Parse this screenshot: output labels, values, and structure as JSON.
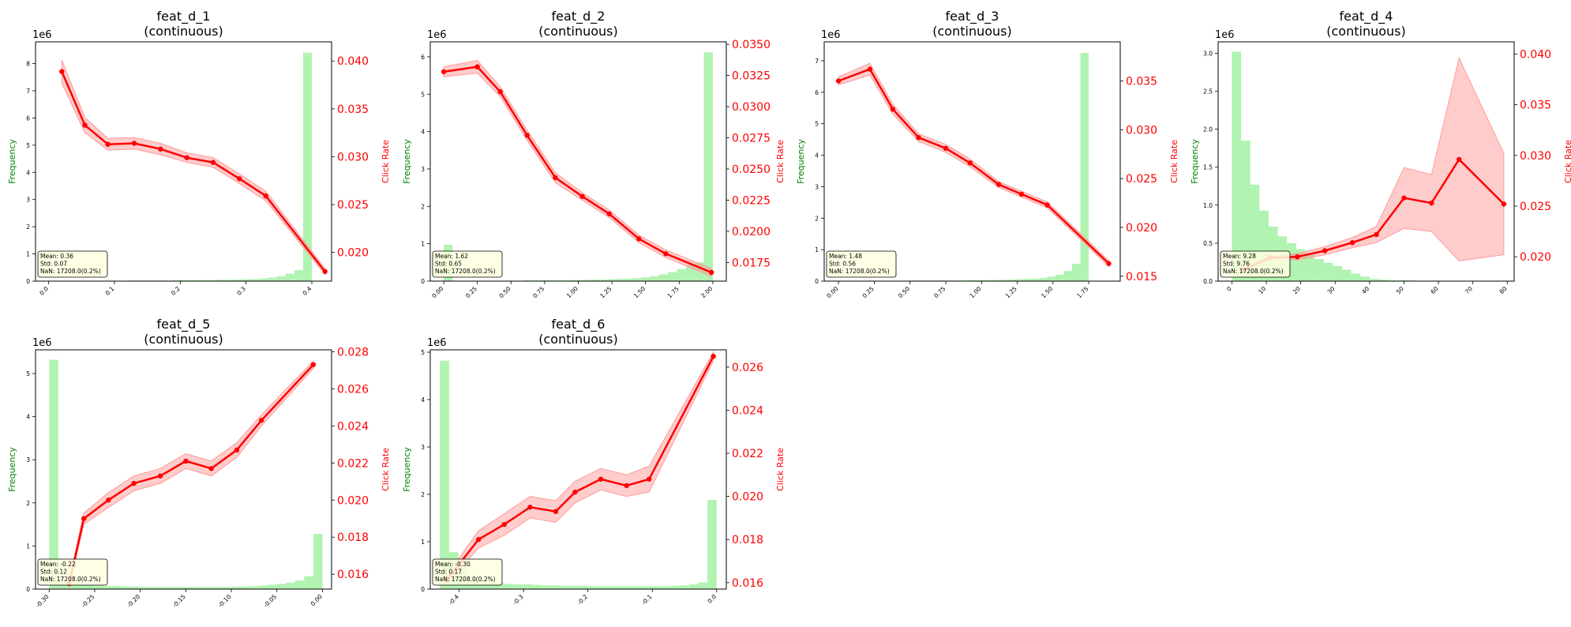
{
  "chart_data": [
    {
      "type": "bar+line",
      "title": "feat_d_1",
      "subtitle": "(continuous)",
      "ylabel_left": "Frequency",
      "ylabel_right": "Click Rate",
      "exponent_label": "1e6",
      "xlim": [
        -0.02,
        0.43
      ],
      "x_ticks": [
        "0.0",
        "0.1",
        "0.2",
        "0.3",
        "0.4"
      ],
      "x_tick_values": [
        0.0,
        0.1,
        0.2,
        0.3,
        0.4
      ],
      "ylim_left": [
        0,
        8.8
      ],
      "y_left_ticks": [
        "0",
        "1",
        "2",
        "3",
        "4",
        "5",
        "6",
        "7",
        "8"
      ],
      "y_left_tick_values": [
        0,
        1,
        2,
        3,
        4,
        5,
        6,
        7,
        8
      ],
      "ylim_right": [
        0.017,
        0.042
      ],
      "y_right_ticks": [
        "0.020",
        "0.025",
        "0.030",
        "0.035",
        "0.040"
      ],
      "y_right_tick_values": [
        0.02,
        0.025,
        0.03,
        0.035,
        0.04
      ],
      "hist": {
        "bin_edges": [
          0.0,
          0.0133,
          0.0267,
          0.04,
          0.0533,
          0.0667,
          0.08,
          0.0933,
          0.1067,
          0.12,
          0.1333,
          0.1467,
          0.16,
          0.1733,
          0.1867,
          0.2,
          0.2133,
          0.2267,
          0.24,
          0.2533,
          0.2667,
          0.28,
          0.2933,
          0.3067,
          0.32,
          0.3333,
          0.3467,
          0.36,
          0.3733,
          0.3867,
          0.4
        ],
        "counts": [
          0.01,
          0.01,
          0.01,
          0.01,
          0.01,
          0.01,
          0.01,
          0.01,
          0.01,
          0.02,
          0.02,
          0.02,
          0.02,
          0.02,
          0.03,
          0.03,
          0.03,
          0.04,
          0.04,
          0.05,
          0.05,
          0.06,
          0.07,
          0.08,
          0.1,
          0.13,
          0.18,
          0.27,
          0.4,
          8.4
        ]
      },
      "line": {
        "x": [
          0.02,
          0.055,
          0.09,
          0.13,
          0.17,
          0.21,
          0.25,
          0.29,
          0.33,
          0.42
        ],
        "y": [
          0.0389,
          0.0333,
          0.0313,
          0.0314,
          0.0308,
          0.0299,
          0.0294,
          0.0277,
          0.0259,
          0.018
        ],
        "err": [
          0.0012,
          0.0008,
          0.0006,
          0.0006,
          0.0006,
          0.0005,
          0.0005,
          0.0005,
          0.0005,
          0.0003
        ]
      },
      "stats": [
        "Mean: 0.36",
        "Std: 0.07",
        "NaN: 17208.0(0.2%)"
      ]
    },
    {
      "type": "bar+line",
      "title": "feat_d_2",
      "subtitle": "(continuous)",
      "ylabel_left": "Frequency",
      "ylabel_right": "Click Rate",
      "exponent_label": "1e6",
      "xlim": [
        -0.1,
        2.1
      ],
      "x_ticks": [
        "0.00",
        "0.25",
        "0.50",
        "0.75",
        "1.00",
        "1.25",
        "1.50",
        "1.75",
        "2.00"
      ],
      "x_tick_values": [
        0.0,
        0.25,
        0.5,
        0.75,
        1.0,
        1.25,
        1.5,
        1.75,
        2.0
      ],
      "ylim_left": [
        0,
        6.4
      ],
      "y_left_ticks": [
        "0",
        "1",
        "2",
        "3",
        "4",
        "5",
        "6"
      ],
      "y_left_tick_values": [
        0,
        1,
        2,
        3,
        4,
        5,
        6
      ],
      "ylim_right": [
        0.016,
        0.0352
      ],
      "y_right_ticks": [
        "0.0175",
        "0.0200",
        "0.0225",
        "0.0250",
        "0.0275",
        "0.0300",
        "0.0325",
        "0.0350"
      ],
      "y_right_tick_values": [
        0.0175,
        0.02,
        0.0225,
        0.025,
        0.0275,
        0.03,
        0.0325,
        0.035
      ],
      "hist": {
        "bin_edges": [
          0.0,
          0.0667,
          0.1333,
          0.2,
          0.2667,
          0.3333,
          0.4,
          0.4667,
          0.5333,
          0.6,
          0.6667,
          0.7333,
          0.8,
          0.8667,
          0.9333,
          1.0,
          1.0667,
          1.1333,
          1.2,
          1.2667,
          1.3333,
          1.4,
          1.4667,
          1.5333,
          1.6,
          1.6667,
          1.7333,
          1.8,
          1.8667,
          1.9333,
          2.0
        ],
        "counts": [
          0.97,
          0.01,
          0.01,
          0.01,
          0.01,
          0.01,
          0.01,
          0.01,
          0.01,
          0.02,
          0.02,
          0.02,
          0.02,
          0.02,
          0.03,
          0.03,
          0.04,
          0.04,
          0.05,
          0.06,
          0.07,
          0.08,
          0.1,
          0.13,
          0.18,
          0.24,
          0.32,
          0.42,
          0.5,
          6.12
        ]
      },
      "line": {
        "x": [
          0.0,
          0.25,
          0.42,
          0.62,
          0.83,
          1.03,
          1.23,
          1.45,
          1.65,
          1.99
        ],
        "y": [
          0.0328,
          0.0332,
          0.0312,
          0.0277,
          0.0243,
          0.0228,
          0.0214,
          0.0194,
          0.0182,
          0.0167
        ],
        "err": [
          0.0004,
          0.0005,
          0.0004,
          0.0004,
          0.0004,
          0.0003,
          0.0003,
          0.0003,
          0.0003,
          0.0003
        ]
      },
      "stats": [
        "Mean: 1.62",
        "Std: 0.65",
        "NaN: 17208.0(0.2%)"
      ]
    },
    {
      "type": "bar+line",
      "title": "feat_d_3",
      "subtitle": "(continuous)",
      "ylabel_left": "Frequency",
      "ylabel_right": "Click Rate",
      "exponent_label": "1e6",
      "xlim": [
        -0.1,
        1.97
      ],
      "x_ticks": [
        "0.00",
        "0.25",
        "0.50",
        "0.75",
        "1.00",
        "1.25",
        "1.50",
        "1.75"
      ],
      "x_tick_values": [
        0.0,
        0.25,
        0.5,
        0.75,
        1.0,
        1.25,
        1.5,
        1.75
      ],
      "ylim_left": [
        0,
        7.6
      ],
      "y_left_ticks": [
        "0",
        "1",
        "2",
        "3",
        "4",
        "5",
        "6",
        "7"
      ],
      "y_left_tick_values": [
        0,
        1,
        2,
        3,
        4,
        5,
        6,
        7
      ],
      "ylim_right": [
        0.0145,
        0.039
      ],
      "y_right_ticks": [
        "0.015",
        "0.020",
        "0.025",
        "0.030",
        "0.035"
      ],
      "y_right_tick_values": [
        0.015,
        0.02,
        0.025,
        0.03,
        0.035
      ],
      "hist": {
        "bin_edges": [
          0.0,
          0.0583,
          0.1167,
          0.175,
          0.2333,
          0.2917,
          0.35,
          0.4083,
          0.4667,
          0.525,
          0.5833,
          0.6417,
          0.7,
          0.7583,
          0.8167,
          0.875,
          0.9333,
          0.9917,
          1.05,
          1.1083,
          1.1667,
          1.225,
          1.2833,
          1.3417,
          1.4,
          1.4583,
          1.5167,
          1.575,
          1.6333,
          1.6917,
          1.75
        ],
        "counts": [
          0.01,
          0.01,
          0.01,
          0.01,
          0.01,
          0.01,
          0.01,
          0.01,
          0.01,
          0.02,
          0.02,
          0.02,
          0.02,
          0.02,
          0.02,
          0.03,
          0.03,
          0.03,
          0.04,
          0.04,
          0.05,
          0.06,
          0.07,
          0.08,
          0.1,
          0.14,
          0.2,
          0.32,
          0.55,
          7.25
        ]
      },
      "line": {
        "x": [
          0.0,
          0.22,
          0.38,
          0.56,
          0.75,
          0.92,
          1.12,
          1.28,
          1.46,
          1.89
        ],
        "y": [
          0.035,
          0.0362,
          0.0321,
          0.0292,
          0.0281,
          0.0266,
          0.0244,
          0.0234,
          0.0223,
          0.0163
        ],
        "err": [
          0.0004,
          0.0006,
          0.0005,
          0.0004,
          0.0004,
          0.0004,
          0.0003,
          0.0003,
          0.0003,
          0.0003
        ]
      },
      "stats": [
        "Mean: 1.48",
        "Std: 0.56",
        "NaN: 17208.0(0.2%)"
      ]
    },
    {
      "type": "bar+line",
      "title": "feat_d_4",
      "subtitle": "(continuous)",
      "ylabel_left": "Frequency",
      "ylabel_right": "Click Rate",
      "exponent_label": "1e6",
      "xlim": [
        -4,
        82
      ],
      "x_ticks": [
        "0",
        "10",
        "20",
        "30",
        "40",
        "50",
        "60",
        "70",
        "80"
      ],
      "x_tick_values": [
        0,
        10,
        20,
        30,
        40,
        50,
        60,
        70,
        80
      ],
      "ylim_left": [
        0,
        3.15
      ],
      "y_left_ticks": [
        "0.0",
        "0.5",
        "1.0",
        "1.5",
        "2.0",
        "2.5",
        "3.0"
      ],
      "y_left_tick_values": [
        0,
        0.5,
        1.0,
        1.5,
        2.0,
        2.5,
        3.0
      ],
      "ylim_right": [
        0.0176,
        0.0412
      ],
      "y_right_ticks": [
        "0.020",
        "0.025",
        "0.030",
        "0.035",
        "0.040"
      ],
      "y_right_tick_values": [
        0.02,
        0.025,
        0.03,
        0.035,
        0.04
      ],
      "hist": {
        "bin_edges": [
          0,
          2.667,
          5.333,
          8.0,
          10.667,
          13.333,
          16.0,
          18.667,
          21.333,
          24.0,
          26.667,
          29.333,
          32.0,
          34.667,
          37.333,
          40.0,
          42.667,
          45.333,
          48.0,
          50.667,
          53.333,
          56.0,
          58.667,
          61.333,
          64.0,
          66.667,
          69.333,
          72.0,
          74.667,
          77.333,
          80.0
        ],
        "counts": [
          3.02,
          1.85,
          1.27,
          0.93,
          0.72,
          0.59,
          0.5,
          0.42,
          0.35,
          0.29,
          0.24,
          0.2,
          0.15,
          0.1,
          0.06,
          0.03,
          0.02,
          0.01,
          0.01,
          0.01,
          0.005,
          0.005,
          0.004,
          0.004,
          0.003,
          0.003,
          0.002,
          0.002,
          0.002,
          0.001
        ]
      },
      "line": {
        "x": [
          3,
          11,
          19,
          27,
          35,
          42,
          50,
          58,
          66,
          79
        ],
        "y": [
          0.0187,
          0.0199,
          0.02,
          0.0206,
          0.0214,
          0.0222,
          0.0258,
          0.0253,
          0.0296,
          0.0252
        ],
        "err": [
          0.0002,
          0.0002,
          0.0003,
          0.0004,
          0.0005,
          0.0008,
          0.003,
          0.0028,
          0.01,
          0.005
        ]
      },
      "stats": [
        "Mean: 9.28",
        "Std: 9.76",
        "NaN: 17208.0(0.2%)"
      ]
    },
    {
      "type": "bar+line",
      "title": "feat_d_5",
      "subtitle": "(continuous)",
      "ylabel_left": "Frequency",
      "ylabel_right": "Click Rate",
      "exponent_label": "1e6",
      "xlim": [
        -0.315,
        0.01
      ],
      "x_ticks": [
        "-0.30",
        "-0.25",
        "-0.20",
        "-0.15",
        "-0.10",
        "-0.05",
        "0.00"
      ],
      "x_tick_values": [
        -0.3,
        -0.25,
        -0.2,
        -0.15,
        -0.1,
        -0.05,
        0.0
      ],
      "ylim_left": [
        0,
        5.55
      ],
      "y_left_ticks": [
        "0",
        "1",
        "2",
        "3",
        "4",
        "5"
      ],
      "y_left_tick_values": [
        0,
        1,
        2,
        3,
        4,
        5
      ],
      "ylim_right": [
        0.0152,
        0.0281
      ],
      "y_right_ticks": [
        "0.016",
        "0.018",
        "0.020",
        "0.022",
        "0.024",
        "0.026",
        "0.028"
      ],
      "y_right_tick_values": [
        0.016,
        0.018,
        0.02,
        0.022,
        0.024,
        0.026,
        0.028
      ],
      "hist": {
        "bin_edges": [
          -0.3,
          -0.29,
          -0.28,
          -0.27,
          -0.26,
          -0.25,
          -0.24,
          -0.23,
          -0.22,
          -0.21,
          -0.2,
          -0.19,
          -0.18,
          -0.17,
          -0.16,
          -0.15,
          -0.14,
          -0.13,
          -0.12,
          -0.11,
          -0.1,
          -0.09,
          -0.08,
          -0.07,
          -0.06,
          -0.05,
          -0.04,
          -0.03,
          -0.02,
          -0.01,
          0.0
        ],
        "counts": [
          5.32,
          0.15,
          0.12,
          0.1,
          0.09,
          0.08,
          0.07,
          0.07,
          0.06,
          0.06,
          0.05,
          0.05,
          0.05,
          0.05,
          0.05,
          0.05,
          0.05,
          0.05,
          0.05,
          0.05,
          0.06,
          0.06,
          0.07,
          0.08,
          0.1,
          0.12,
          0.15,
          0.2,
          0.3,
          1.28
        ]
      },
      "line": {
        "x": [
          -0.278,
          -0.262,
          -0.235,
          -0.207,
          -0.178,
          -0.15,
          -0.122,
          -0.094,
          -0.067,
          -0.01
        ],
        "y": [
          0.0155,
          0.019,
          0.02,
          0.0209,
          0.0213,
          0.0221,
          0.0217,
          0.0227,
          0.0243,
          0.0273
        ],
        "err": [
          0.0002,
          0.0003,
          0.0004,
          0.0004,
          0.0004,
          0.0004,
          0.0004,
          0.0004,
          0.0003,
          0.0002
        ]
      },
      "stats": [
        "Mean: -0.22",
        "Std: 0.12",
        "NaN: 17208.0(0.2%)"
      ]
    },
    {
      "type": "bar+line",
      "title": "feat_d_6",
      "subtitle": "(continuous)",
      "ylabel_left": "Frequency",
      "ylabel_right": "Click Rate",
      "exponent_label": "1e6",
      "xlim": [
        -0.445,
        0.015
      ],
      "x_ticks": [
        "-0.4",
        "-0.3",
        "-0.2",
        "-0.1",
        "0.0"
      ],
      "x_tick_values": [
        -0.4,
        -0.3,
        -0.2,
        -0.1,
        0.0
      ],
      "ylim_left": [
        0,
        5.05
      ],
      "y_left_ticks": [
        "0",
        "1",
        "2",
        "3",
        "4",
        "5"
      ],
      "y_left_tick_values": [
        0,
        1,
        2,
        3,
        4,
        5
      ],
      "ylim_right": [
        0.0157,
        0.0268
      ],
      "y_right_ticks": [
        "0.016",
        "0.018",
        "0.020",
        "0.022",
        "0.024",
        "0.026"
      ],
      "y_right_tick_values": [
        0.016,
        0.018,
        0.02,
        0.022,
        0.024,
        0.026
      ],
      "hist": {
        "bin_edges": [
          -0.43,
          -0.4157,
          -0.4013,
          -0.387,
          -0.3727,
          -0.3583,
          -0.344,
          -0.3297,
          -0.3153,
          -0.301,
          -0.2867,
          -0.2723,
          -0.258,
          -0.2437,
          -0.2293,
          -0.215,
          -0.2007,
          -0.1863,
          -0.172,
          -0.1577,
          -0.1433,
          -0.129,
          -0.1147,
          -0.1003,
          -0.086,
          -0.0717,
          -0.0573,
          -0.043,
          -0.0287,
          -0.0143,
          0.0
        ],
        "counts": [
          4.82,
          0.78,
          0.45,
          0.28,
          0.18,
          0.14,
          0.12,
          0.11,
          0.1,
          0.1,
          0.09,
          0.08,
          0.08,
          0.07,
          0.07,
          0.07,
          0.06,
          0.06,
          0.06,
          0.06,
          0.06,
          0.06,
          0.06,
          0.06,
          0.06,
          0.07,
          0.08,
          0.1,
          0.14,
          1.88
        ]
      },
      "line": {
        "x": [
          -0.42,
          -0.37,
          -0.33,
          -0.29,
          -0.25,
          -0.22,
          -0.18,
          -0.14,
          -0.105,
          -0.005
        ],
        "y": [
          0.0161,
          0.018,
          0.0187,
          0.0195,
          0.0193,
          0.0202,
          0.0208,
          0.0205,
          0.0208,
          0.0265
        ],
        "err": [
          0.0002,
          0.0004,
          0.0005,
          0.0005,
          0.0005,
          0.0005,
          0.0005,
          0.0005,
          0.0006,
          0.0002
        ]
      },
      "stats": [
        "Mean: -0.30",
        "Std: 0.17",
        "NaN: 17208.0(0.2%)"
      ]
    }
  ],
  "colors": {
    "bar": "#90ee90",
    "line": "#ff0000",
    "band": "#ff9999",
    "freq_label": "#008000",
    "rate_label": "#ff0000",
    "stats_bg": "#ffffe0"
  }
}
